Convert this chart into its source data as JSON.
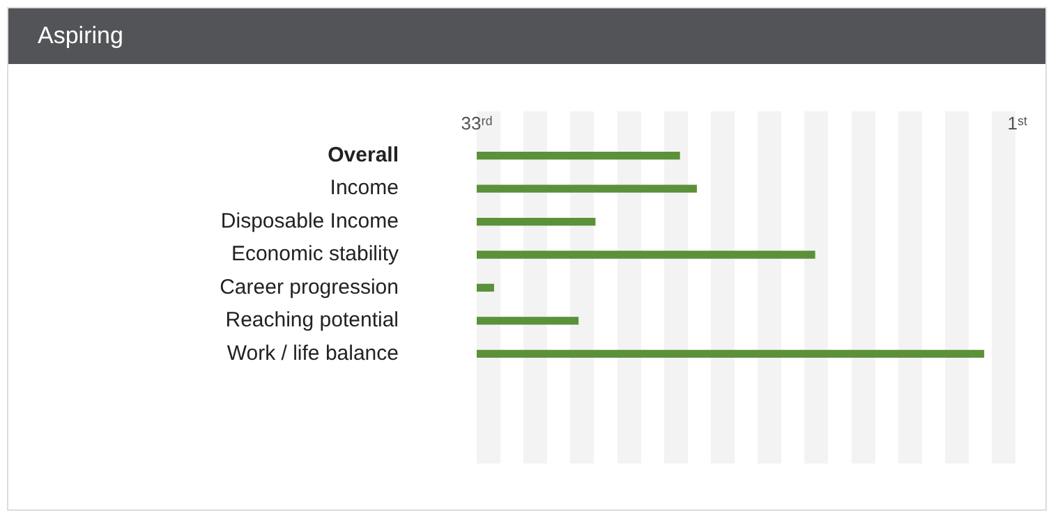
{
  "chart_data": {
    "type": "bar",
    "orientation": "horizontal",
    "title": "Aspiring",
    "categories": [
      "Overall",
      "Income",
      "Disposable Income",
      "Economic stability",
      "Career progression",
      "Reaching potential",
      "Work / life balance"
    ],
    "base": [
      33,
      33,
      33,
      33,
      33,
      33,
      33
    ],
    "values": [
      -12,
      -13,
      -7,
      -20,
      -1,
      -6,
      -30
    ],
    "color": "#5b9138",
    "xlim": [
      33,
      1
    ],
    "xticks": [
      {
        "value": 33,
        "label": "33ʳᵈ"
      },
      {
        "value": 1,
        "label": "1ˢᵗ"
      }
    ],
    "grid": false,
    "legend": false
  }
}
